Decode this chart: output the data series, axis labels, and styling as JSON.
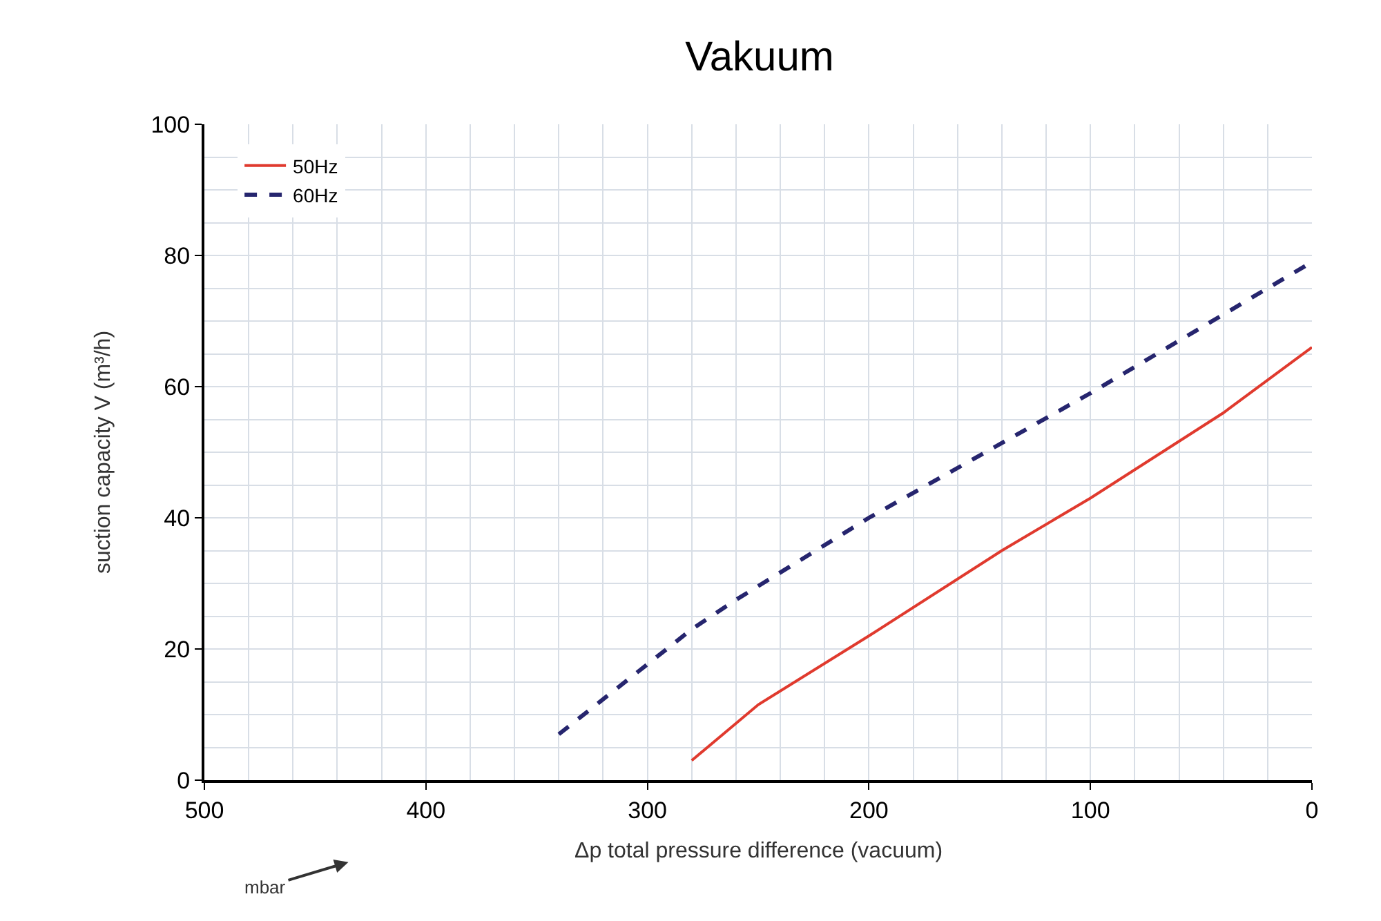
{
  "chart_data": {
    "type": "line",
    "title": "Vakuum",
    "xlabel": "Δp total pressure difference (vacuum)",
    "ylabel": "suction capacity V (m³/h)",
    "annotations": [
      "mbar"
    ],
    "xlim": [
      500,
      0
    ],
    "xticks": [
      500,
      400,
      300,
      200,
      100,
      0
    ],
    "ylim": [
      0,
      100
    ],
    "yticks": [
      0,
      20,
      40,
      60,
      80,
      100
    ],
    "grid": true,
    "legend": "top left",
    "series": [
      {
        "name": "50Hz",
        "color": "#e03a2e",
        "line_style": "solid",
        "x": [
          280,
          250,
          200,
          140,
          100,
          40,
          0
        ],
        "values": [
          3,
          11.5,
          22,
          35,
          43,
          56,
          66
        ]
      },
      {
        "name": "60Hz",
        "color": "#26256e",
        "line_style": "dashed",
        "x": [
          340,
          280,
          260,
          200,
          100,
          0
        ],
        "values": [
          7,
          23,
          27.5,
          40,
          59,
          79
        ]
      }
    ]
  }
}
